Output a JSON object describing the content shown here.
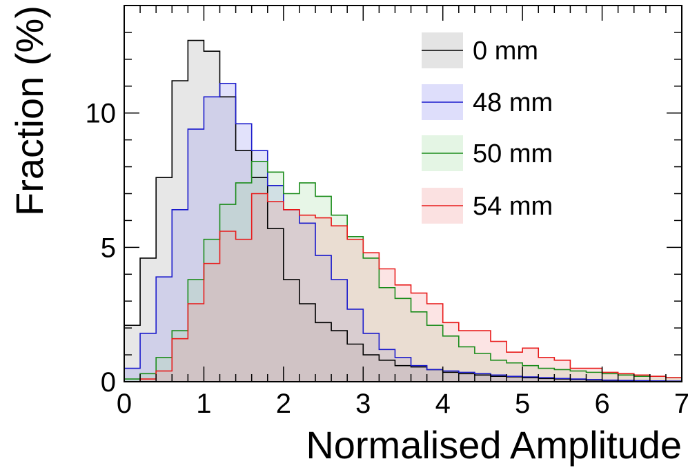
{
  "chart_data": {
    "type": "histogram",
    "xlabel": "Normalised Amplitude",
    "ylabel": "Fraction (%)",
    "xlim": [
      0,
      7
    ],
    "ylim": [
      0,
      14
    ],
    "bin_width": 0.2,
    "x_ticks": [
      0,
      1,
      2,
      3,
      4,
      5,
      6,
      7
    ],
    "y_ticks": [
      0,
      5,
      10
    ],
    "legend_position": "top-right",
    "series": [
      {
        "name": "0 mm",
        "stroke": "#000000",
        "fill": "#9e9e9e",
        "values": [
          2.1,
          4.6,
          7.6,
          11.2,
          12.7,
          12.3,
          10.6,
          8.6,
          7.6,
          5.7,
          3.8,
          2.9,
          2.2,
          1.9,
          1.4,
          1.0,
          0.8,
          0.6,
          0.55,
          0.45,
          0.35,
          0.3,
          0.25,
          0.2,
          0.18,
          0.15,
          0.12,
          0.1,
          0.08,
          0.06,
          0.05,
          0.04,
          0.03,
          0.03,
          0.02
        ]
      },
      {
        "name": "48 mm",
        "stroke": "#1a1acc",
        "fill": "#8a8af0",
        "values": [
          0.5,
          1.8,
          3.9,
          6.4,
          9.4,
          10.6,
          11.1,
          9.6,
          8.6,
          7.3,
          6.4,
          5.9,
          4.7,
          3.8,
          2.7,
          1.8,
          1.2,
          0.9,
          0.6,
          0.45,
          0.4,
          0.35,
          0.3,
          0.25,
          0.2,
          0.18,
          0.15,
          0.12,
          0.1,
          0.08,
          0.06,
          0.05,
          0.04,
          0.03,
          0.02
        ]
      },
      {
        "name": "50 mm",
        "stroke": "#1b8c1b",
        "fill": "#9fdb9f",
        "values": [
          0.1,
          0.3,
          0.9,
          1.9,
          3.8,
          5.3,
          6.6,
          7.4,
          8.2,
          7.8,
          7.0,
          7.4,
          6.9,
          6.2,
          5.4,
          4.6,
          3.5,
          3.1,
          2.6,
          2.1,
          1.7,
          1.3,
          1.05,
          0.8,
          0.7,
          0.6,
          0.5,
          0.45,
          0.4,
          0.35,
          0.3,
          0.25,
          0.2,
          0.2,
          0.15
        ]
      },
      {
        "name": "54 mm",
        "stroke": "#e81a1a",
        "fill": "#f29595",
        "values": [
          0.0,
          0.1,
          0.4,
          1.6,
          2.9,
          4.4,
          5.6,
          5.3,
          7.0,
          6.7,
          6.4,
          6.2,
          6.1,
          5.8,
          5.3,
          4.8,
          4.2,
          3.6,
          3.3,
          2.9,
          2.2,
          1.9,
          1.9,
          1.5,
          1.1,
          1.25,
          0.9,
          0.8,
          0.5,
          0.5,
          0.35,
          0.3,
          0.25,
          0.2,
          0.15
        ]
      }
    ]
  }
}
